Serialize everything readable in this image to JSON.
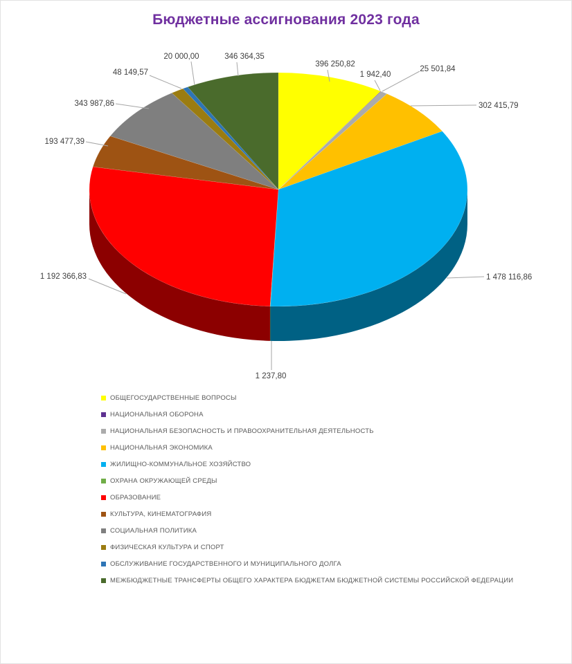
{
  "chart_data": {
    "type": "pie",
    "style": "3d",
    "title": "Бюджетные ассигнования 2023 года",
    "start_angle_deg": 0,
    "direction": "clockwise",
    "legend_position": "bottom-left",
    "total": 4349811.51,
    "categories": [
      "ОБЩЕГОСУДАРСТВЕННЫЕ ВОПРОСЫ",
      "НАЦИОНАЛЬНАЯ ОБОРОНА",
      "НАЦИОНАЛЬНАЯ БЕЗОПАСНОСТЬ И ПРАВООХРАНИТЕЛЬНАЯ ДЕЯТЕЛЬНОСТЬ",
      "НАЦИОНАЛЬНАЯ ЭКОНОМИКА",
      "ЖИЛИЩНО-КОММУНАЛЬНОЕ ХОЗЯЙСТВО",
      "ОХРАНА ОКРУЖАЮЩЕЙ СРЕДЫ",
      "ОБРАЗОВАНИЕ",
      "КУЛЬТУРА, КИНЕМАТОГРАФИЯ",
      "СОЦИАЛЬНАЯ ПОЛИТИКА",
      "ФИЗИЧЕСКАЯ КУЛЬТУРА И СПОРТ",
      "ОБСЛУЖИВАНИЕ ГОСУДАРСТВЕННОГО И МУНИЦИПАЛЬНОГО ДОЛГА",
      "МЕЖБЮДЖЕТНЫЕ ТРАНСФЕРТЫ ОБЩЕГО ХАРАКТЕРА БЮДЖЕТАМ БЮДЖЕТНОЙ СИСТЕМЫ РОССИЙСКОЙ ФЕДЕРАЦИИ"
    ],
    "values": [
      396250.82,
      1942.4,
      25501.84,
      302415.79,
      1478116.86,
      1237.8,
      1192366.83,
      193477.39,
      343987.86,
      48149.57,
      20000.0,
      346364.35
    ],
    "data_labels": [
      "396 250,82",
      "1 942,40",
      "25 501,84",
      "302 415,79",
      "1 478 116,86",
      "1 237,80",
      "1 192 366,83",
      "193 477,39",
      "343 987,86",
      "48 149,57",
      "20 000,00",
      "346 364,35"
    ],
    "colors": [
      "#FFFF00",
      "#5E3191",
      "#ABABAB",
      "#FFC000",
      "#00B0F0",
      "#70AD47",
      "#FF0000",
      "#9E5313",
      "#7F7F7F",
      "#9B7C11",
      "#2E75B6",
      "#4A6B2C"
    ]
  },
  "ui_colors": {
    "title": "#7030A0",
    "data_label": "#3F3F3F",
    "legend_text": "#595959",
    "leader_line": "#A6A6A6",
    "chart_border": "#E2E2E2",
    "background": "#FFFFFF"
  }
}
